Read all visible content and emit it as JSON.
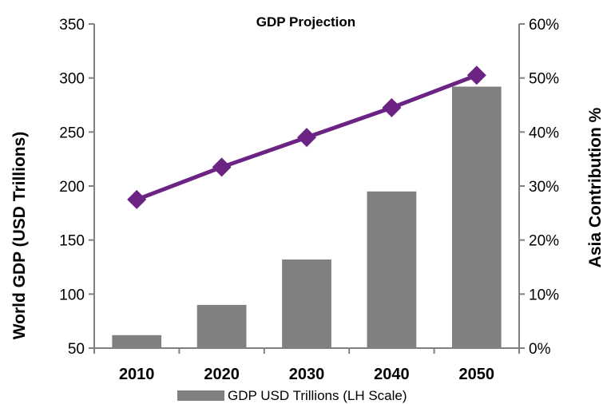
{
  "chart_data": {
    "type": "bar",
    "title": "GDP Projection",
    "categories": [
      "2010",
      "2020",
      "2030",
      "2040",
      "2050"
    ],
    "series": [
      {
        "name": "GDP USD Trillions (LH Scale)",
        "type": "bar",
        "axis": "left",
        "values": [
          62,
          90,
          132,
          195,
          292
        ]
      },
      {
        "type": "line",
        "axis": "right",
        "values": [
          27.5,
          33.5,
          39,
          44.5,
          50.5
        ]
      }
    ],
    "ylabel": "World GDP (USD Trillions)",
    "ylabel_right": "Asia Contribution %",
    "ylim": [
      50,
      350
    ],
    "ylim_right": [
      0,
      60
    ],
    "yticks": [
      50,
      100,
      150,
      200,
      250,
      300,
      350
    ],
    "yticks_right": [
      "0%",
      "10%",
      "20%",
      "30%",
      "40%",
      "50%",
      "60%"
    ],
    "grid": false,
    "legend_position": "bottom",
    "colors": {
      "bar": "#808080",
      "line": "#6B2384",
      "axis": "#808080"
    }
  }
}
